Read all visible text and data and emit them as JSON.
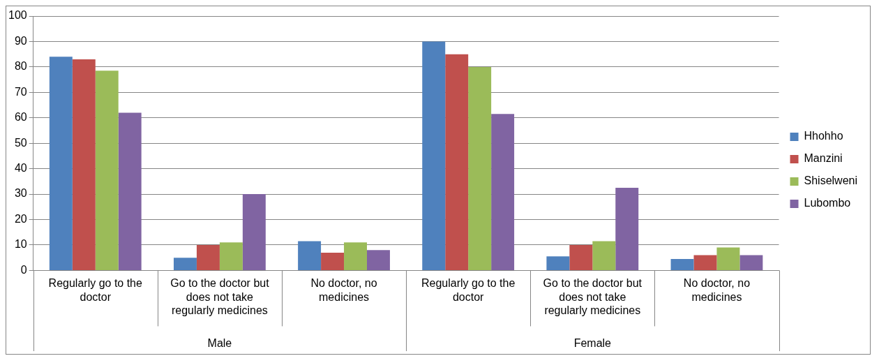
{
  "chart_data": {
    "type": "bar",
    "categories": [
      "Regularly go to the doctor",
      "Go to the doctor but does not take regularly medicines",
      "No doctor, no medicines",
      "Regularly go to the doctor",
      "Go to the doctor but does not take regularly medicines",
      "No doctor, no medicines"
    ],
    "series": [
      {
        "name": "Hhohho",
        "color": "#4f81bd",
        "values": [
          84,
          5,
          11.5,
          90,
          5.5,
          4.5
        ]
      },
      {
        "name": "Manzini",
        "color": "#c0504d",
        "values": [
          83,
          10,
          7,
          85,
          10,
          6
        ]
      },
      {
        "name": "Shiselweni",
        "color": "#9bbb59",
        "values": [
          78.5,
          11,
          11,
          80,
          11.5,
          9
        ]
      },
      {
        "name": "Lubombo",
        "color": "#8064a2",
        "values": [
          62,
          30,
          8,
          61.5,
          32.5,
          6
        ]
      }
    ],
    "annotations": [
      "Male",
      "Female"
    ],
    "ylim": [
      0,
      100
    ],
    "yticks": [
      0,
      10,
      20,
      30,
      40,
      50,
      60,
      70,
      80,
      90,
      100
    ],
    "grid": "y",
    "legend": "right"
  }
}
